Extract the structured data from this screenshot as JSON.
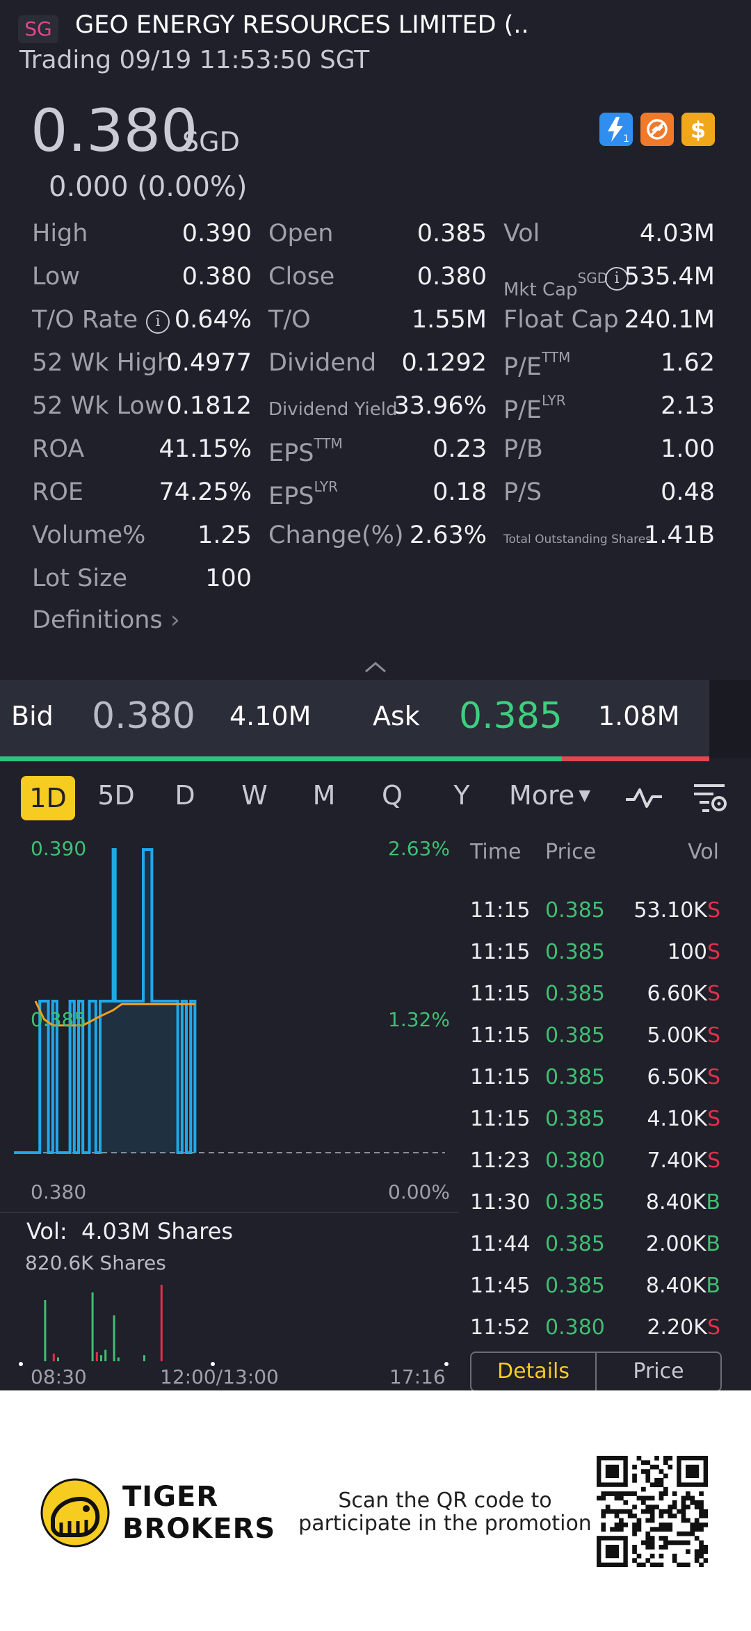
{
  "header": {
    "badge": "SG",
    "title": "GEO ENERGY RESOURCES LIMITED (..",
    "status": "Trading 09/19 11:53:50 SGT"
  },
  "quote": {
    "price": "0.380",
    "currency": "SGD",
    "change": "0.000 (0.00%)"
  },
  "feature_icons": [
    "lightning-level-1-icon",
    "no-shorting-icon",
    "dollar-icon"
  ],
  "colors": {
    "up": "#3ebf73",
    "down": "#e0304a",
    "accent": "#f5cc1f",
    "line": "#1fa8e8",
    "avg_line": "#f0a020"
  },
  "stats": {
    "high_label": "High",
    "high": "0.390",
    "open_label": "Open",
    "open": "0.385",
    "vol_label": "Vol",
    "vol": "4.03M",
    "low_label": "Low",
    "low": "0.380",
    "close_label": "Close",
    "close": "0.380",
    "mktcap_label": "Mkt Cap",
    "mktcap_sup": "SGD",
    "mktcap": "535.4M",
    "tor_label": "T/O Rate",
    "tor": "0.64%",
    "to_label": "T/O",
    "to": "1.55M",
    "float_label": "Float Cap",
    "float": "240.1M",
    "wkhigh_label": "52 Wk High",
    "wkhigh": "0.4977",
    "div_label": "Dividend",
    "div": "0.1292",
    "pettm_label": "P/E",
    "pettm_sup": "TTM",
    "pettm": "1.62",
    "wklow_label": "52 Wk Low",
    "wklow": "0.1812",
    "divy_label": "Dividend Yield",
    "divy": "33.96%",
    "pelyr_label": "P/E",
    "pelyr_sup": "LYR",
    "pelyr": "2.13",
    "roa_label": "ROA",
    "roa": "41.15%",
    "epsttm_label": "EPS",
    "epsttm_sup": "TTM",
    "epsttm": "0.23",
    "pb_label": "P/B",
    "pb": "1.00",
    "roe_label": "ROE",
    "roe": "74.25%",
    "epslyr_label": "EPS",
    "epslyr_sup": "LYR",
    "epslyr": "0.18",
    "ps_label": "P/S",
    "ps": "0.48",
    "volpct_label": "Volume%",
    "volpct": "1.25",
    "chg_label": "Change(%)",
    "chg": "2.63%",
    "tos_label": "Total Outstanding Shares",
    "tos": "1.41B",
    "lot_label": "Lot Size",
    "lot": "100",
    "definitions": "Definitions"
  },
  "bidask": {
    "bid_label": "Bid",
    "bid": "0.380",
    "bid_vol": "4.10M",
    "ask_label": "Ask",
    "ask": "0.385",
    "ask_vol": "1.08M",
    "bid_fraction": 0.792
  },
  "tabs": {
    "items": [
      "1D",
      "5D",
      "D",
      "W",
      "M",
      "Q",
      "Y"
    ],
    "active": "1D",
    "more": "More"
  },
  "chart_data": {
    "type": "line",
    "y_left_labels": [
      "0.390",
      "0.385",
      "0.380"
    ],
    "y_right_labels": [
      "2.63%",
      "1.32%",
      "0.00%"
    ],
    "ylim": [
      0.38,
      0.39
    ],
    "x_labels": [
      "08:30",
      "12:00/13:00",
      "17:16"
    ],
    "series": [
      {
        "role": "price",
        "x": [
          0,
          0.05,
          0.06,
          0.07,
          0.08,
          0.09,
          0.1,
          0.12,
          0.13,
          0.14,
          0.15,
          0.16,
          0.17,
          0.175,
          0.18,
          0.19,
          0.2,
          0.22,
          0.23,
          0.235,
          0.24,
          0.25,
          0.26,
          0.28,
          0.3,
          0.32,
          0.33,
          0.34,
          0.35,
          0.36,
          0.37,
          0.38,
          0.39,
          0.4,
          0.41,
          0.42
        ],
        "values": [
          0.38,
          0.38,
          0.385,
          0.385,
          0.38,
          0.385,
          0.38,
          0.38,
          0.385,
          0.38,
          0.385,
          0.38,
          0.38,
          0.385,
          0.385,
          0.38,
          0.385,
          0.385,
          0.39,
          0.385,
          0.385,
          0.385,
          0.385,
          0.385,
          0.39,
          0.385,
          0.385,
          0.385,
          0.385,
          0.385,
          0.385,
          0.38,
          0.385,
          0.38,
          0.385,
          0.38
        ]
      },
      {
        "role": "average",
        "x": [
          0.05,
          0.07,
          0.09,
          0.12,
          0.16,
          0.2,
          0.23,
          0.25,
          0.3,
          0.35,
          0.42
        ],
        "values": [
          0.385,
          0.3844,
          0.3842,
          0.3842,
          0.3842,
          0.3845,
          0.3847,
          0.3849,
          0.3849,
          0.3849,
          0.3849
        ]
      }
    ]
  },
  "volume": {
    "label": "Vol:",
    "total": "4.03M Shares",
    "max_label": "820.6K Shares",
    "bars": [
      {
        "x": 0.07,
        "v": 0.8,
        "c": "up"
      },
      {
        "x": 0.09,
        "v": 0.1,
        "c": "down"
      },
      {
        "x": 0.1,
        "v": 0.05,
        "c": "up"
      },
      {
        "x": 0.18,
        "v": 0.9,
        "c": "up"
      },
      {
        "x": 0.19,
        "v": 0.12,
        "c": "down"
      },
      {
        "x": 0.2,
        "v": 0.08,
        "c": "up"
      },
      {
        "x": 0.21,
        "v": 0.15,
        "c": "up"
      },
      {
        "x": 0.23,
        "v": 0.6,
        "c": "up"
      },
      {
        "x": 0.24,
        "v": 0.05,
        "c": "up"
      },
      {
        "x": 0.3,
        "v": 0.08,
        "c": "up"
      },
      {
        "x": 0.34,
        "v": 1.0,
        "c": "down"
      }
    ]
  },
  "trades": {
    "headers": {
      "time": "Time",
      "price": "Price",
      "vol": "Vol"
    },
    "rows": [
      {
        "time": "11:15",
        "price": "0.385",
        "vol": "53.10K",
        "side": "S"
      },
      {
        "time": "11:15",
        "price": "0.385",
        "vol": "100",
        "side": "S"
      },
      {
        "time": "11:15",
        "price": "0.385",
        "vol": "6.60K",
        "side": "S"
      },
      {
        "time": "11:15",
        "price": "0.385",
        "vol": "5.00K",
        "side": "S"
      },
      {
        "time": "11:15",
        "price": "0.385",
        "vol": "6.50K",
        "side": "S"
      },
      {
        "time": "11:15",
        "price": "0.385",
        "vol": "4.10K",
        "side": "S"
      },
      {
        "time": "11:23",
        "price": "0.380",
        "vol": "7.40K",
        "side": "S"
      },
      {
        "time": "11:30",
        "price": "0.385",
        "vol": "8.40K",
        "side": "B"
      },
      {
        "time": "11:44",
        "price": "0.385",
        "vol": "2.00K",
        "side": "B"
      },
      {
        "time": "11:45",
        "price": "0.385",
        "vol": "8.40K",
        "side": "B"
      },
      {
        "time": "11:52",
        "price": "0.380",
        "vol": "2.20K",
        "side": "S"
      }
    ],
    "seg_details": "Details",
    "seg_price": "Price"
  },
  "footer": {
    "brand_line1": "TIGER",
    "brand_line2": "BROKERS",
    "scan_line1": "Scan the QR code to",
    "scan_line2": "participate in the promotion"
  }
}
